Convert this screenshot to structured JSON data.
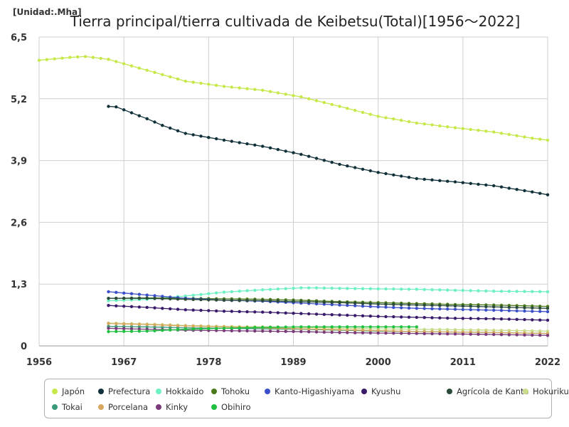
{
  "unit_label": "[Unidad:.Mha]",
  "chart_data": {
    "type": "line",
    "title": "Tierra principal/tierra cultivada de Keibetsu(Total)[1956～2022]",
    "xlabel": "",
    "ylabel": "",
    "xlim": [
      1956,
      2022
    ],
    "ylim": [
      0,
      6.5
    ],
    "x_ticks": [
      "1956",
      "1967",
      "1978",
      "1989",
      "2000",
      "2011",
      "2022"
    ],
    "y_ticks": [
      "0",
      "1,3",
      "2,6",
      "3,9",
      "5,2",
      "6,5"
    ],
    "grid": true,
    "legend_position": "bottom",
    "series": [
      {
        "name": "Japón",
        "color": "#c6e84a",
        "x": [
          1956,
          1960,
          1962,
          1965,
          1970,
          1975,
          1980,
          1985,
          1990,
          1995,
          2000,
          2005,
          2010,
          2015,
          2020,
          2022
        ],
        "y": [
          6.01,
          6.07,
          6.09,
          6.03,
          5.8,
          5.57,
          5.46,
          5.38,
          5.24,
          5.04,
          4.83,
          4.69,
          4.59,
          4.5,
          4.37,
          4.33
        ]
      },
      {
        "name": "Prefectura",
        "color": "#10303a",
        "x": [
          1965,
          1966,
          1970,
          1972,
          1975,
          1980,
          1985,
          1990,
          1995,
          2000,
          2005,
          2010,
          2015,
          2020,
          2022
        ],
        "y": [
          5.04,
          5.03,
          4.78,
          4.64,
          4.47,
          4.33,
          4.2,
          4.03,
          3.82,
          3.65,
          3.52,
          3.45,
          3.37,
          3.24,
          3.18
        ]
      },
      {
        "name": "Hokkaido",
        "color": "#6ef0c0",
        "x": [
          1965,
          1970,
          1975,
          1980,
          1985,
          1990,
          1992,
          1995,
          2000,
          2005,
          2010,
          2015,
          2022
        ],
        "y": [
          0.95,
          0.98,
          1.05,
          1.13,
          1.18,
          1.22,
          1.22,
          1.21,
          1.2,
          1.19,
          1.17,
          1.15,
          1.14
        ]
      },
      {
        "name": "Tohoku",
        "color": "#4a7a1a",
        "x": [
          1965,
          1970,
          1975,
          1980,
          1985,
          1990,
          1995,
          2000,
          2005,
          2010,
          2015,
          2022
        ],
        "y": [
          1.0,
          1.01,
          1.0,
          0.99,
          0.98,
          0.96,
          0.93,
          0.91,
          0.89,
          0.87,
          0.86,
          0.83
        ]
      },
      {
        "name": "Kanto-Higashiyama",
        "color": "#3b4fc8",
        "x": [
          1965,
          1970,
          1975,
          1980,
          1985,
          1990,
          1995,
          2000,
          2005,
          2010,
          2015,
          2022
        ],
        "y": [
          1.14,
          1.07,
          1.0,
          0.96,
          0.94,
          0.9,
          0.86,
          0.82,
          0.79,
          0.77,
          0.75,
          0.72
        ]
      },
      {
        "name": "Kyushu",
        "color": "#3a1a6a",
        "x": [
          1965,
          1970,
          1975,
          1980,
          1985,
          1990,
          1995,
          2000,
          2005,
          2010,
          2015,
          2022
        ],
        "y": [
          0.85,
          0.81,
          0.76,
          0.73,
          0.71,
          0.68,
          0.65,
          0.62,
          0.6,
          0.58,
          0.57,
          0.54
        ]
      },
      {
        "name": "Agrícola de Kanto",
        "color": "#2a4a3a",
        "x": [
          1965,
          1970,
          1975,
          1980,
          1985,
          1990,
          1995,
          2000,
          2005,
          2010,
          2015,
          2022
        ],
        "y": [
          1.0,
          1.0,
          0.98,
          0.96,
          0.95,
          0.93,
          0.91,
          0.88,
          0.86,
          0.84,
          0.82,
          0.79
        ]
      },
      {
        "name": "Hokuriku",
        "color": "#c8dc8a",
        "x": [
          1965,
          1970,
          1975,
          1980,
          1985,
          1990,
          1995,
          2000,
          2005,
          2010,
          2015,
          2022
        ],
        "y": [
          0.48,
          0.46,
          0.43,
          0.41,
          0.4,
          0.39,
          0.37,
          0.36,
          0.35,
          0.34,
          0.33,
          0.31
        ]
      },
      {
        "name": "Tokai",
        "color": "#3a9a7a",
        "x": [
          1965,
          1970,
          1975,
          1980,
          1985,
          1990,
          1995,
          2000,
          2005,
          2010,
          2015,
          2022
        ],
        "y": [
          0.41,
          0.4,
          0.38,
          0.37,
          0.36,
          0.35,
          0.33,
          0.31,
          0.3,
          0.29,
          0.28,
          0.26
        ]
      },
      {
        "name": "Porcelana",
        "color": "#d8a860",
        "x": [
          1965,
          1970,
          1975,
          1980,
          1985,
          1990,
          1995,
          2000,
          2005,
          2010,
          2015,
          2022
        ],
        "y": [
          0.47,
          0.45,
          0.42,
          0.4,
          0.38,
          0.36,
          0.34,
          0.32,
          0.3,
          0.29,
          0.28,
          0.26
        ]
      },
      {
        "name": "Kinky",
        "color": "#7a3a7a",
        "x": [
          1965,
          1970,
          1975,
          1980,
          1985,
          1990,
          1995,
          2000,
          2005,
          2010,
          2015,
          2022
        ],
        "y": [
          0.37,
          0.35,
          0.33,
          0.32,
          0.31,
          0.3,
          0.28,
          0.27,
          0.26,
          0.25,
          0.24,
          0.22
        ]
      },
      {
        "name": "Obihiro",
        "color": "#20c040",
        "x": [
          1965,
          1970,
          1975,
          1980,
          1985,
          1990,
          1995,
          2000,
          2005
        ],
        "y": [
          0.3,
          0.31,
          0.35,
          0.37,
          0.39,
          0.4,
          0.4,
          0.4,
          0.4
        ]
      }
    ]
  }
}
